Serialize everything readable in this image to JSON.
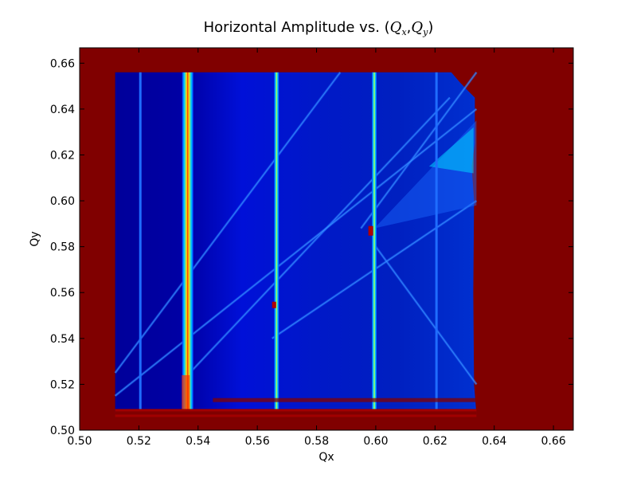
{
  "chart_data": {
    "type": "heatmap",
    "title": "Horizontal Amplitude vs. (Q_x, Q_y)",
    "title_parts": {
      "prefix": "Horizontal Amplitude vs. (",
      "qx_base": "Q",
      "qx_sub": "x",
      "sep": ",",
      "qy_base": "Q",
      "qy_sub": "y",
      "suffix": ")"
    },
    "xlabel": "Qx",
    "ylabel": "Qy",
    "xlim": [
      0.5,
      0.6667
    ],
    "ylim": [
      0.5,
      0.6667
    ],
    "xticks": [
      "0.50",
      "0.52",
      "0.54",
      "0.56",
      "0.58",
      "0.60",
      "0.62",
      "0.64",
      "0.66"
    ],
    "yticks": [
      "0.50",
      "0.52",
      "0.54",
      "0.56",
      "0.58",
      "0.60",
      "0.62",
      "0.64",
      "0.66"
    ],
    "colormap": "jet",
    "colors": {
      "background_high": "#800000",
      "base_low": "#00008f",
      "mid_blue": "#0a3cff",
      "bright_blue": "#1f6dff",
      "cyan": "#00d4ff",
      "yellow": "#ffe000",
      "red": "#ff2000"
    },
    "scanned_region": {
      "qx": [
        0.512,
        0.634
      ],
      "qy": [
        0.507,
        0.656
      ]
    },
    "vertical_resonances": [
      {
        "qx": 0.5205,
        "intensity": "low"
      },
      {
        "qx": 0.5365,
        "intensity": "high"
      },
      {
        "qx": 0.5665,
        "intensity": "medium"
      },
      {
        "qx": 0.5995,
        "intensity": "medium"
      },
      {
        "qx": 0.6205,
        "intensity": "low"
      }
    ],
    "horizontal_band": {
      "qy": 0.5075,
      "color": "dark-red"
    },
    "diagonal_resonances": [
      {
        "from": [
          0.512,
          0.525
        ],
        "to": [
          0.588,
          0.656
        ]
      },
      {
        "from": [
          0.535,
          0.522
        ],
        "to": [
          0.625,
          0.645
        ]
      },
      {
        "from": [
          0.595,
          0.588
        ],
        "to": [
          0.634,
          0.656
        ]
      },
      {
        "from": [
          0.512,
          0.515
        ],
        "to": [
          0.634,
          0.64
        ]
      },
      {
        "from": [
          0.6,
          0.58
        ],
        "to": [
          0.634,
          0.52
        ]
      },
      {
        "from": [
          0.565,
          0.54
        ],
        "to": [
          0.634,
          0.6
        ]
      }
    ]
  }
}
